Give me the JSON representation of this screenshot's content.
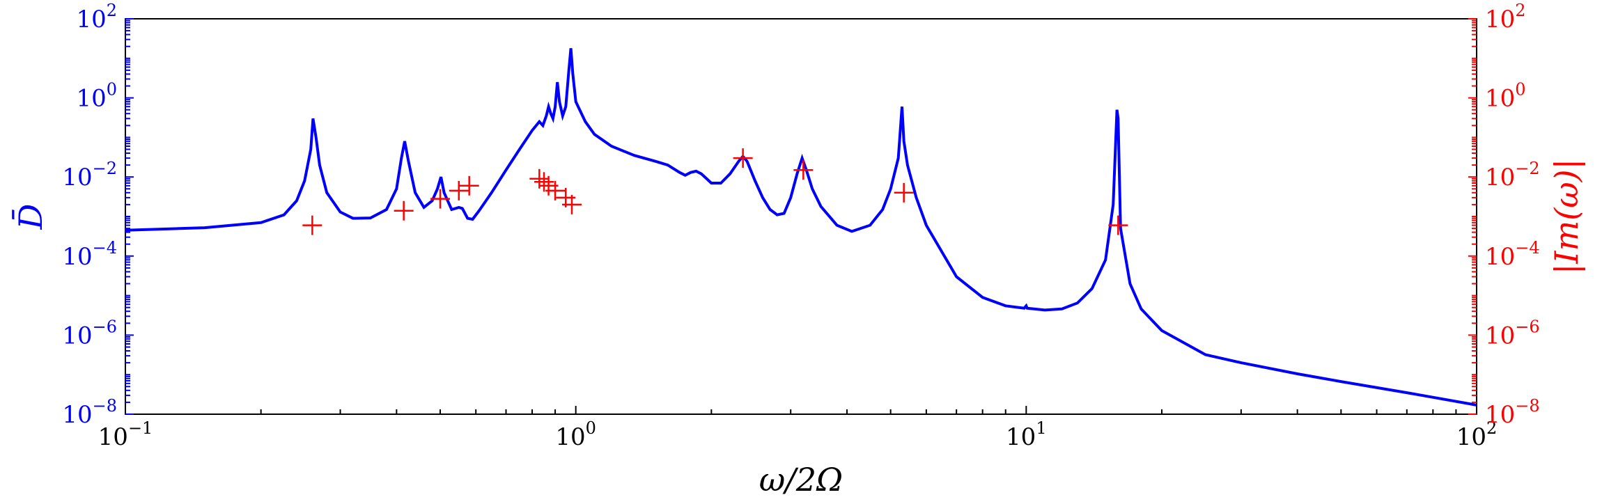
{
  "chart_data": {
    "type": "line",
    "xlabel": "ω/2Ω",
    "ylabel_left": "D̄",
    "ylabel_right": "|Im(ω)|",
    "x_scale": "log",
    "y_scale": "log",
    "xlim": [
      0.1,
      100
    ],
    "ylim_left": [
      1e-08,
      100
    ],
    "ylim_right": [
      1e-08,
      100
    ],
    "grid": false,
    "colors": {
      "left_axis": "#0000ff",
      "right_axis": "#ff0000",
      "line": "#0000ff",
      "markers": "#ff0000"
    },
    "x_ticks": [
      {
        "base": "10",
        "exp": "−1",
        "value": 0.1
      },
      {
        "base": "10",
        "exp": "0",
        "value": 1
      },
      {
        "base": "10",
        "exp": "1",
        "value": 10
      },
      {
        "base": "10",
        "exp": "2",
        "value": 100
      }
    ],
    "y_ticks_left": [
      {
        "base": "10",
        "exp": "2",
        "value": 100
      },
      {
        "base": "10",
        "exp": "0",
        "value": 1
      },
      {
        "base": "10",
        "exp": "−2",
        "value": 0.01
      },
      {
        "base": "10",
        "exp": "−4",
        "value": 0.0001
      },
      {
        "base": "10",
        "exp": "−6",
        "value": 1e-06
      },
      {
        "base": "10",
        "exp": "−8",
        "value": 1e-08
      }
    ],
    "y_ticks_right": [
      {
        "base": "10",
        "exp": "2",
        "value": 100
      },
      {
        "base": "10",
        "exp": "0",
        "value": 1
      },
      {
        "base": "10",
        "exp": "−2",
        "value": 0.01
      },
      {
        "base": "10",
        "exp": "−4",
        "value": 0.0001
      },
      {
        "base": "10",
        "exp": "−6",
        "value": 1e-06
      },
      {
        "base": "10",
        "exp": "−8",
        "value": 1e-08
      }
    ],
    "series": [
      {
        "type": "line",
        "axis": "left",
        "points": [
          [
            0.1,
            0.00045
          ],
          [
            0.15,
            0.00052
          ],
          [
            0.2,
            0.0007
          ],
          [
            0.225,
            0.0011
          ],
          [
            0.24,
            0.0025
          ],
          [
            0.25,
            0.008
          ],
          [
            0.258,
            0.05
          ],
          [
            0.261,
            0.3
          ],
          [
            0.265,
            0.1
          ],
          [
            0.27,
            0.02
          ],
          [
            0.28,
            0.004
          ],
          [
            0.3,
            0.0013
          ],
          [
            0.32,
            0.0009
          ],
          [
            0.35,
            0.00092
          ],
          [
            0.38,
            0.0015
          ],
          [
            0.4,
            0.005
          ],
          [
            0.41,
            0.03
          ],
          [
            0.417,
            0.08
          ],
          [
            0.425,
            0.025
          ],
          [
            0.44,
            0.004
          ],
          [
            0.46,
            0.0017
          ],
          [
            0.48,
            0.0025
          ],
          [
            0.493,
            0.005
          ],
          [
            0.502,
            0.01
          ],
          [
            0.51,
            0.004
          ],
          [
            0.53,
            0.0015
          ],
          [
            0.55,
            0.0017
          ],
          [
            0.56,
            0.0016
          ],
          [
            0.575,
            0.0009
          ],
          [
            0.59,
            0.00085
          ],
          [
            0.61,
            0.0014
          ],
          [
            0.65,
            0.004
          ],
          [
            0.7,
            0.015
          ],
          [
            0.75,
            0.05
          ],
          [
            0.8,
            0.15
          ],
          [
            0.83,
            0.25
          ],
          [
            0.845,
            0.2
          ],
          [
            0.86,
            0.35
          ],
          [
            0.87,
            0.6
          ],
          [
            0.88,
            0.4
          ],
          [
            0.89,
            0.3
          ],
          [
            0.9,
            0.6
          ],
          [
            0.91,
            2.5
          ],
          [
            0.92,
            0.8
          ],
          [
            0.935,
            0.35
          ],
          [
            0.95,
            0.6
          ],
          [
            0.965,
            5
          ],
          [
            0.975,
            18
          ],
          [
            0.985,
            4
          ],
          [
            1.0,
            0.8
          ],
          [
            1.05,
            0.25
          ],
          [
            1.1,
            0.12
          ],
          [
            1.2,
            0.06
          ],
          [
            1.35,
            0.035
          ],
          [
            1.5,
            0.025
          ],
          [
            1.6,
            0.02
          ],
          [
            1.7,
            0.013
          ],
          [
            1.75,
            0.011
          ],
          [
            1.8,
            0.013
          ],
          [
            1.85,
            0.014
          ],
          [
            1.9,
            0.012
          ],
          [
            2.0,
            0.007
          ],
          [
            2.1,
            0.007
          ],
          [
            2.2,
            0.012
          ],
          [
            2.3,
            0.025
          ],
          [
            2.35,
            0.033
          ],
          [
            2.4,
            0.025
          ],
          [
            2.5,
            0.008
          ],
          [
            2.6,
            0.003
          ],
          [
            2.7,
            0.0015
          ],
          [
            2.8,
            0.0011
          ],
          [
            2.9,
            0.0012
          ],
          [
            3.0,
            0.003
          ],
          [
            3.1,
            0.012
          ],
          [
            3.18,
            0.03
          ],
          [
            3.25,
            0.015
          ],
          [
            3.35,
            0.005
          ],
          [
            3.5,
            0.0018
          ],
          [
            3.8,
            0.0006
          ],
          [
            4.1,
            0.00042
          ],
          [
            4.5,
            0.0006
          ],
          [
            4.8,
            0.0015
          ],
          [
            5.0,
            0.005
          ],
          [
            5.2,
            0.03
          ],
          [
            5.3,
            0.6
          ],
          [
            5.35,
            0.08
          ],
          [
            5.45,
            0.02
          ],
          [
            5.7,
            0.003
          ],
          [
            6.0,
            0.0006
          ],
          [
            7.0,
            3e-05
          ],
          [
            8.0,
            9e-06
          ],
          [
            9.0,
            5.5e-06
          ],
          [
            9.9,
            4.8e-06
          ],
          [
            10.0,
            5.5e-06
          ],
          [
            10.05,
            4.8e-06
          ],
          [
            11.0,
            4.3e-06
          ],
          [
            12.0,
            4.6e-06
          ],
          [
            13.0,
            6.5e-06
          ],
          [
            14.0,
            1.5e-05
          ],
          [
            15.0,
            8e-05
          ],
          [
            15.6,
            0.002
          ],
          [
            15.9,
            0.5
          ],
          [
            16.0,
            0.3
          ],
          [
            16.2,
            0.0005
          ],
          [
            17.0,
            2e-05
          ],
          [
            18.0,
            4.6e-06
          ],
          [
            20.0,
            1.3e-06
          ],
          [
            25.0,
            3.2e-07
          ],
          [
            30.0,
            2e-07
          ],
          [
            40.0,
            1.05e-07
          ],
          [
            50.0,
            6.7e-08
          ],
          [
            70.0,
            3.5e-08
          ],
          [
            100.0,
            1.7e-08
          ]
        ]
      },
      {
        "type": "scatter",
        "axis": "right",
        "marker": "+",
        "points": [
          [
            0.26,
            0.0006
          ],
          [
            0.415,
            0.0014
          ],
          [
            0.5,
            0.0028
          ],
          [
            0.55,
            0.0045
          ],
          [
            0.58,
            0.006
          ],
          [
            0.83,
            0.009
          ],
          [
            0.85,
            0.0075
          ],
          [
            0.87,
            0.006
          ],
          [
            0.9,
            0.0045
          ],
          [
            0.95,
            0.003
          ],
          [
            0.98,
            0.002
          ],
          [
            2.35,
            0.03
          ],
          [
            3.2,
            0.015
          ],
          [
            5.35,
            0.004
          ],
          [
            16.0,
            0.0006
          ]
        ]
      }
    ]
  }
}
